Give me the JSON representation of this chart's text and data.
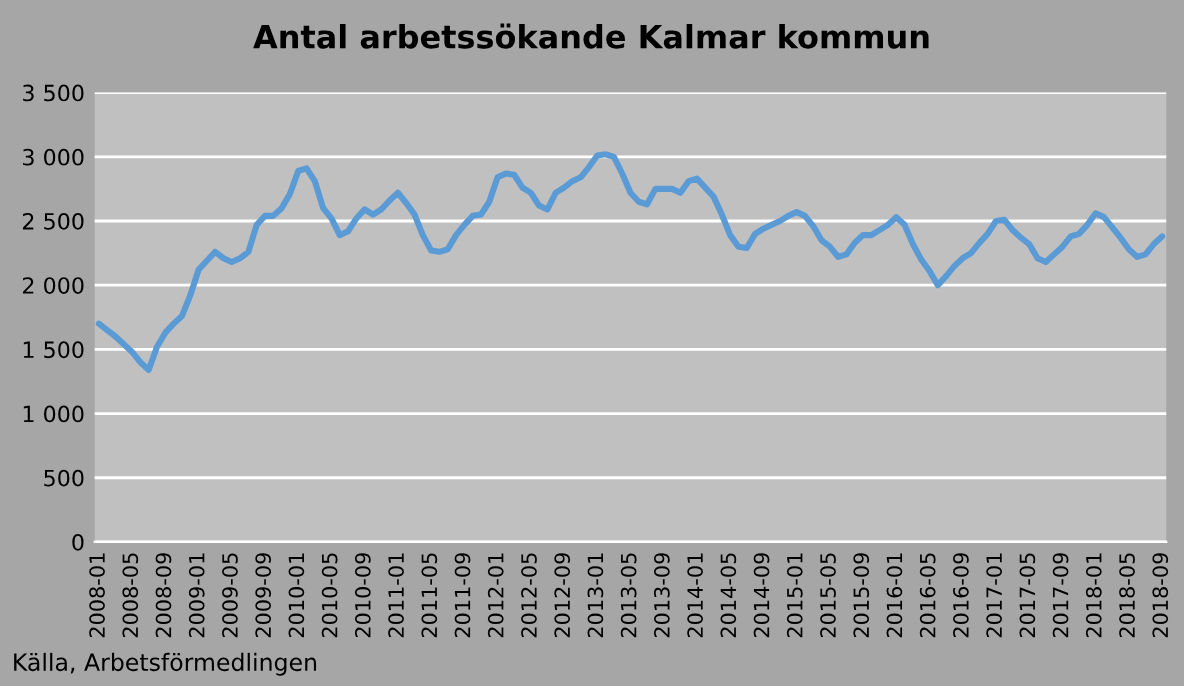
{
  "chart_data": {
    "type": "line",
    "title": "Antal arbetssökande Kalmar kommun",
    "categories": [
      "2008-01",
      null,
      null,
      null,
      "2008-05",
      null,
      null,
      null,
      "2008-09",
      null,
      null,
      null,
      "2009-01",
      null,
      null,
      null,
      "2009-05",
      null,
      null,
      null,
      "2009-09",
      null,
      null,
      null,
      "2010-01",
      null,
      null,
      null,
      "2010-05",
      null,
      null,
      null,
      "2010-09",
      null,
      null,
      null,
      "2011-01",
      null,
      null,
      null,
      "2011-05",
      null,
      null,
      null,
      "2011-09",
      null,
      null,
      null,
      "2012-01",
      null,
      null,
      null,
      "2012-05",
      null,
      null,
      null,
      "2012-09",
      null,
      null,
      null,
      "2013-01",
      null,
      null,
      null,
      "2013-05",
      null,
      null,
      null,
      "2013-09",
      null,
      null,
      null,
      "2014-01",
      null,
      null,
      null,
      "2014-05",
      null,
      null,
      null,
      "2014-09",
      null,
      null,
      null,
      "2015-01",
      null,
      null,
      null,
      "2015-05",
      null,
      null,
      null,
      "2015-09",
      null,
      null,
      null,
      "2016-01",
      null,
      null,
      null,
      "2016-05",
      null,
      null,
      null,
      "2016-09",
      null,
      null,
      null,
      "2017-01",
      null,
      null,
      null,
      "2017-05",
      null,
      null,
      null,
      "2017-09",
      null,
      null,
      null,
      "2018-01",
      null,
      null,
      null,
      "2018-05",
      null,
      null,
      null,
      "2018-09"
    ],
    "series": [
      {
        "color": "#5b9bd5",
        "values": [
          1700,
          1650,
          1600,
          1540,
          1480,
          1400,
          1340,
          1520,
          1630,
          1700,
          1760,
          1920,
          2120,
          2190,
          2260,
          2210,
          2180,
          2210,
          2260,
          2470,
          2540,
          2540,
          2600,
          2710,
          2890,
          2910,
          2810,
          2600,
          2520,
          2390,
          2420,
          2520,
          2590,
          2550,
          2590,
          2660,
          2720,
          2640,
          2550,
          2390,
          2270,
          2260,
          2280,
          2390,
          2470,
          2540,
          2550,
          2650,
          2840,
          2870,
          2860,
          2760,
          2720,
          2620,
          2590,
          2720,
          2760,
          2810,
          2840,
          2920,
          3010,
          3020,
          3000,
          2870,
          2720,
          2650,
          2630,
          2750,
          2750,
          2750,
          2720,
          2810,
          2830,
          2760,
          2690,
          2550,
          2390,
          2300,
          2290,
          2400,
          2440,
          2470,
          2500,
          2540,
          2570,
          2540,
          2460,
          2350,
          2300,
          2220,
          2240,
          2330,
          2390,
          2390,
          2430,
          2470,
          2530,
          2470,
          2320,
          2200,
          2110,
          2000,
          2070,
          2150,
          2210,
          2250,
          2330,
          2400,
          2500,
          2510,
          2430,
          2370,
          2320,
          2210,
          2180,
          2240,
          2300,
          2380,
          2400,
          2470,
          2560,
          2530,
          2450,
          2370,
          2280,
          2220,
          2240,
          2320,
          2380
        ]
      }
    ],
    "ylim": [
      0,
      3500
    ],
    "yticks": [
      0,
      500,
      {
        "value": 1000,
        "label": "1 000"
      },
      {
        "value": 1500,
        "label": "1 500"
      },
      {
        "value": 2000,
        "label": "2 000"
      },
      {
        "value": 2500,
        "label": "2 500"
      },
      {
        "value": 3000,
        "label": "3 000"
      },
      {
        "value": 3500,
        "label": "3 500"
      }
    ],
    "grid": "y",
    "annotations": [
      "Källa, Arbetsförmedlingen"
    ]
  }
}
